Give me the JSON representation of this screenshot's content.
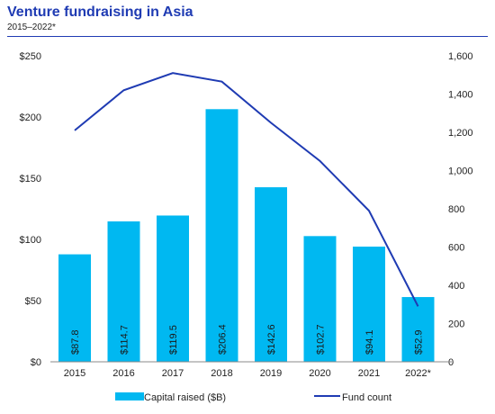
{
  "header": {
    "title": "Venture fundraising in Asia",
    "subtitle": "2015–2022*"
  },
  "colors": {
    "bar": "#00b8f1",
    "line": "#1f3bb3",
    "title": "#1f3bb3"
  },
  "chart_data": {
    "type": "bar",
    "categories": [
      "2015",
      "2016",
      "2017",
      "2018",
      "2019",
      "2020",
      "2021",
      "2022*"
    ],
    "series": [
      {
        "name": "Capital raised ($B)",
        "type": "bar",
        "axis": "left",
        "values": [
          87.8,
          114.7,
          119.5,
          206.4,
          142.6,
          102.7,
          94.1,
          52.9
        ],
        "labels": [
          "$87.8",
          "$114.7",
          "$119.5",
          "$206.4",
          "$142.6",
          "$102.7",
          "$94.1",
          "$52.9"
        ]
      },
      {
        "name": "Fund count",
        "type": "line",
        "axis": "right",
        "values": [
          1210,
          1420,
          1510,
          1465,
          1250,
          1050,
          790,
          290
        ]
      }
    ],
    "y_left": {
      "ylim": [
        0,
        250
      ],
      "ticks": [
        "$0",
        "$50",
        "$100",
        "$150",
        "$200",
        "$250"
      ]
    },
    "y_right": {
      "ylim": [
        0,
        1600
      ],
      "ticks": [
        "0",
        "200",
        "400",
        "600",
        "800",
        "1,000",
        "1,200",
        "1,400",
        "1,600"
      ]
    },
    "grid": false,
    "legend": "bottom"
  }
}
